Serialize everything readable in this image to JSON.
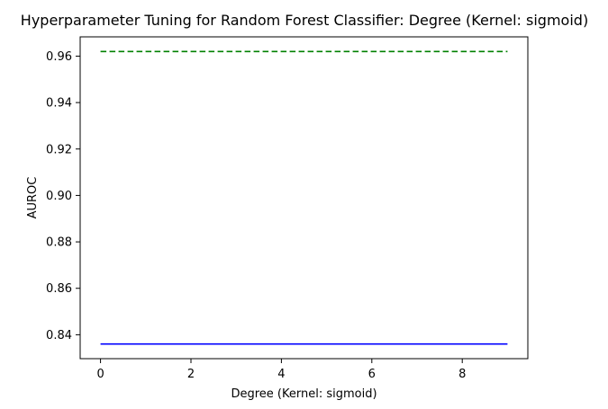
{
  "chart_data": {
    "type": "line",
    "title": "Hyperparameter Tuning for Random Forest Classifier: Degree (Kernel: sigmoid)",
    "xlabel": "Degree (Kernel: sigmoid)",
    "ylabel": "AUROC",
    "xlim": [
      -0.45,
      9.45
    ],
    "ylim": [
      0.8297,
      0.9683
    ],
    "x_ticks": [
      0,
      2,
      4,
      6,
      8
    ],
    "y_ticks": [
      0.84,
      0.86,
      0.88,
      0.9,
      0.92,
      0.94,
      0.96
    ],
    "x_tick_labels": [
      "0",
      "2",
      "4",
      "6",
      "8"
    ],
    "y_tick_labels": [
      "0.84",
      "0.86",
      "0.88",
      "0.90",
      "0.92",
      "0.94",
      "0.96"
    ],
    "grid": false,
    "legend": "none",
    "x": [
      0,
      1,
      2,
      3,
      4,
      5,
      6,
      7,
      8,
      9
    ],
    "series": [
      {
        "values": [
          0.962,
          0.962,
          0.962,
          0.962,
          0.962,
          0.962,
          0.962,
          0.962,
          0.962,
          0.962
        ],
        "color": "#008000",
        "style": "dashed"
      },
      {
        "values": [
          0.836,
          0.836,
          0.836,
          0.836,
          0.836,
          0.836,
          0.836,
          0.836,
          0.836,
          0.836
        ],
        "color": "#0000ff",
        "style": "solid"
      }
    ]
  }
}
